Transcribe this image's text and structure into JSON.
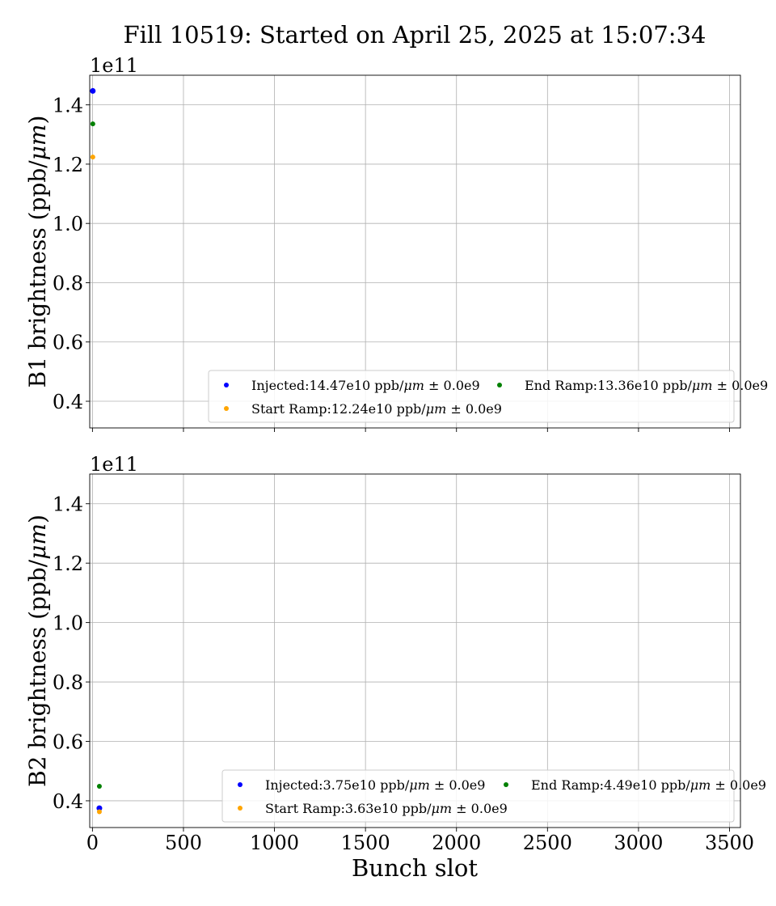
{
  "figure": {
    "title": "Fill 10519: Started on April 25, 2025 at 15:07:34",
    "xlabel": "Bunch slot"
  },
  "chart_data": [
    {
      "type": "scatter",
      "ylabel": "B1 brightness (ppb/μm)",
      "ylabel_prefix": "B1 brightness (ppb/",
      "ylabel_unit": "μm",
      "ylabel_suffix": ")",
      "offset_label": "1e11",
      "xlim": [
        -15,
        3560
      ],
      "ylim": [
        0.31,
        1.5
      ],
      "yticks": [
        0.4,
        0.6,
        0.8,
        1.0,
        1.2,
        1.4
      ],
      "ytick_labels": [
        "0.4",
        "0.6",
        "0.8",
        "1.0",
        "1.2",
        "1.4"
      ],
      "xticks": [
        0,
        500,
        1000,
        1500,
        2000,
        2500,
        3000,
        3500
      ],
      "xtick_labels": [],
      "grid": true,
      "legend_placement": "lower-right",
      "series": [
        {
          "name": "Injected:14.47e10 ppb/μm ± 0.0e9",
          "label_prefix": "Injected:14.47e10 ppb/",
          "label_unit": "μm",
          "label_suffix": " ± 0.0e9",
          "color": "#0000ff",
          "x": [
            2
          ],
          "y": [
            1.447
          ],
          "size": 5
        },
        {
          "name": "Start Ramp:12.24e10 ppb/μm ± 0.0e9",
          "label_prefix": "Start Ramp:12.24e10 ppb/",
          "label_unit": "μm",
          "label_suffix": " ± 0.0e9",
          "color": "#ffa500",
          "x": [
            2
          ],
          "y": [
            1.224
          ],
          "size": 4
        },
        {
          "name": "End Ramp:13.36e10 ppb/μm ± 0.0e9",
          "label_prefix": "End Ramp:13.36e10 ppb/",
          "label_unit": "μm",
          "label_suffix": " ± 0.0e9",
          "color": "#008000",
          "x": [
            2
          ],
          "y": [
            1.336
          ],
          "size": 4
        }
      ]
    },
    {
      "type": "scatter",
      "ylabel": "B2 brightness (ppb/μm)",
      "ylabel_prefix": "B2 brightness (ppb/",
      "ylabel_unit": "μm",
      "ylabel_suffix": ")",
      "offset_label": "1e11",
      "xlim": [
        -15,
        3560
      ],
      "ylim": [
        0.31,
        1.5
      ],
      "yticks": [
        0.4,
        0.6,
        0.8,
        1.0,
        1.2,
        1.4
      ],
      "ytick_labels": [
        "0.4",
        "0.6",
        "0.8",
        "1.0",
        "1.2",
        "1.4"
      ],
      "xticks": [
        0,
        500,
        1000,
        1500,
        2000,
        2500,
        3000,
        3500
      ],
      "xtick_labels": [
        "0",
        "500",
        "1000",
        "1500",
        "2000",
        "2500",
        "3000",
        "3500"
      ],
      "grid": true,
      "legend_placement": "lower-right",
      "series": [
        {
          "name": "Injected:3.75e10 ppb/μm ± 0.0e9",
          "label_prefix": "Injected:3.75e10 ppb/",
          "label_unit": "μm",
          "label_suffix": " ± 0.0e9",
          "color": "#0000ff",
          "x": [
            38
          ],
          "y": [
            0.375
          ],
          "size": 5
        },
        {
          "name": "Start Ramp:3.63e10 ppb/μm ± 0.0e9",
          "label_prefix": "Start Ramp:3.63e10 ppb/",
          "label_unit": "μm",
          "label_suffix": " ± 0.0e9",
          "color": "#ffa500",
          "x": [
            38
          ],
          "y": [
            0.363
          ],
          "size": 4
        },
        {
          "name": "End Ramp:4.49e10 ppb/μm ± 0.0e9",
          "label_prefix": "End Ramp:4.49e10 ppb/",
          "label_unit": "μm",
          "label_suffix": " ± 0.0e9",
          "color": "#008000",
          "x": [
            38
          ],
          "y": [
            0.449
          ],
          "size": 4
        }
      ]
    }
  ]
}
